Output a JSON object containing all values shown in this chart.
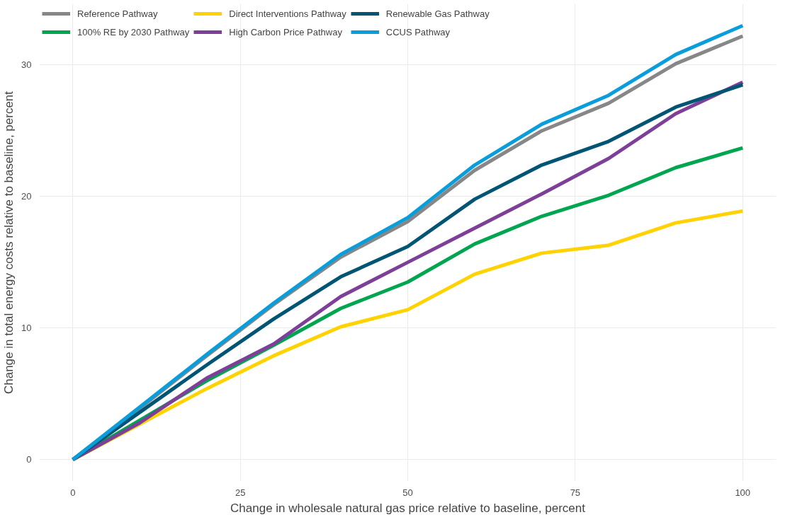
{
  "chart_data": {
    "type": "line",
    "xlabel": "Change in wholesale natural gas price relative to baseline, percent",
    "ylabel": "Change in total energy costs relative to baseline, percent",
    "x": [
      0,
      10,
      20,
      30,
      40,
      50,
      60,
      70,
      80,
      90,
      100
    ],
    "series": [
      {
        "name": "Reference Pathway",
        "color": "#878787",
        "values": [
          0,
          3.9,
          7.9,
          11.8,
          15.4,
          18.1,
          22.0,
          25.0,
          27.1,
          30.1,
          32.2
        ]
      },
      {
        "name": "100% RE by 2030 Pathway",
        "color": "#00a64f",
        "values": [
          0,
          3.0,
          6.0,
          8.7,
          11.5,
          13.5,
          16.4,
          18.5,
          20.1,
          22.2,
          23.7
        ]
      },
      {
        "name": "Direct Interventions Pathway",
        "color": "#ffd200",
        "values": [
          0,
          2.7,
          5.4,
          7.9,
          10.1,
          11.4,
          14.1,
          15.7,
          16.3,
          18.0,
          18.9
        ]
      },
      {
        "name": "High Carbon Price Pathway",
        "color": "#7d3f98",
        "values": [
          0,
          2.8,
          6.2,
          8.8,
          12.4,
          15.0,
          17.6,
          20.2,
          22.9,
          26.3,
          28.7
        ]
      },
      {
        "name": "Renewable Gas Pathway",
        "color": "#005574",
        "values": [
          0,
          3.6,
          7.2,
          10.7,
          13.9,
          16.2,
          19.8,
          22.4,
          24.2,
          26.8,
          28.5
        ]
      },
      {
        "name": "CCUS Pathway",
        "color": "#0a9ddb",
        "values": [
          0,
          4.0,
          8.0,
          11.9,
          15.6,
          18.4,
          22.4,
          25.5,
          27.7,
          30.8,
          33.0
        ]
      }
    ],
    "xlim": [
      -5,
      105
    ],
    "ylim": [
      -1.65,
      34.65
    ],
    "xticks": [
      0,
      25,
      50,
      75,
      100
    ],
    "yticks": [
      0,
      10,
      20,
      30
    ],
    "grid": true,
    "legend": "top",
    "marker": "none",
    "line_style": "solid"
  }
}
